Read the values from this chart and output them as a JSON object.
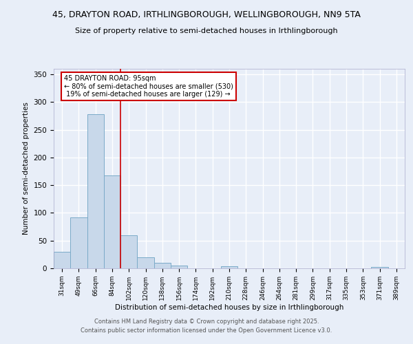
{
  "title_line1": "45, DRAYTON ROAD, IRTHLINGBOROUGH, WELLINGBOROUGH, NN9 5TA",
  "title_line2": "Size of property relative to semi-detached houses in Irthlingborough",
  "xlabel": "Distribution of semi-detached houses by size in Irthlingborough",
  "ylabel": "Number of semi-detached properties",
  "categories": [
    "31sqm",
    "49sqm",
    "66sqm",
    "84sqm",
    "102sqm",
    "120sqm",
    "138sqm",
    "156sqm",
    "174sqm",
    "192sqm",
    "210sqm",
    "228sqm",
    "246sqm",
    "264sqm",
    "281sqm",
    "299sqm",
    "317sqm",
    "335sqm",
    "353sqm",
    "371sqm",
    "389sqm"
  ],
  "values": [
    30,
    92,
    278,
    168,
    60,
    20,
    10,
    5,
    0,
    0,
    4,
    0,
    0,
    0,
    0,
    0,
    0,
    0,
    0,
    2,
    0
  ],
  "bar_color": "#c8d8ea",
  "bar_edge_color": "#7aaac8",
  "marker_label": "45 DRAYTON ROAD: 95sqm",
  "pct_smaller": "80% of semi-detached houses are smaller (530)",
  "pct_larger": "19% of semi-detached houses are larger (129)",
  "annotation_box_color": "#cc0000",
  "marker_line_color": "#cc0000",
  "ylim": [
    0,
    360
  ],
  "yticks": [
    0,
    50,
    100,
    150,
    200,
    250,
    300,
    350
  ],
  "footer_line1": "Contains HM Land Registry data © Crown copyright and database right 2025.",
  "footer_line2": "Contains public sector information licensed under the Open Government Licence v3.0.",
  "bg_color": "#e8eef8",
  "plot_bg_color": "#e8eef8"
}
